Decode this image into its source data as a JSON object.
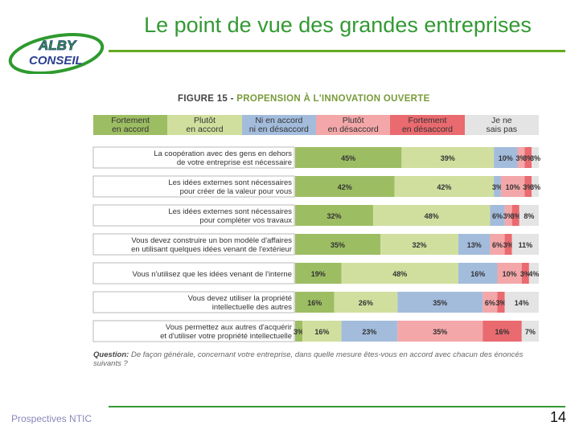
{
  "slide": {
    "title": "Le point de vue des grandes entreprises",
    "logo_top": "ALBY",
    "logo_bottom": "CONSEIL",
    "footer_text": "Prospectives NTIC",
    "page_number": "14"
  },
  "figure": {
    "label": "FIGURE 15 -",
    "title": "PROPENSION À L'INNOVATION OUVERTE",
    "question_label": "Question:",
    "question_text": "De façon générale, concernant votre entreprise, dans quelle mesure êtes-vous en accord avec chacun des énoncés suivants ?"
  },
  "colors": {
    "brand_green": "#339933",
    "series": [
      "#9dbd63",
      "#d0df9e",
      "#a3bcdc",
      "#f3a7a9",
      "#e96a6f",
      "#e4e4e4"
    ]
  },
  "chart_data": {
    "type": "bar",
    "orientation": "horizontal",
    "stacked": true,
    "title": "PROPENSION À L'INNOVATION OUVERTE",
    "legend_position": "top",
    "series": [
      {
        "name": "Fortement en accord",
        "line1": "Fortement",
        "line2": "en accord",
        "values": [
          45,
          42,
          32,
          35,
          19,
          16,
          3
        ]
      },
      {
        "name": "Plutôt en accord",
        "line1": "Plutôt",
        "line2": "en accord",
        "values": [
          39,
          42,
          48,
          32,
          48,
          26,
          16
        ]
      },
      {
        "name": "Ni en accord ni en désaccord",
        "line1": "Ni en accord",
        "line2": "ni en désaccord",
        "values": [
          10,
          3,
          6,
          13,
          16,
          35,
          23
        ]
      },
      {
        "name": "Plutôt en désaccord",
        "line1": "Plutôt",
        "line2": "en désaccord",
        "values": [
          3,
          10,
          3,
          6,
          10,
          6,
          35
        ]
      },
      {
        "name": "Fortement en désaccord",
        "line1": "Fortement",
        "line2": "en désaccord",
        "values": [
          3,
          3,
          3,
          3,
          3,
          3,
          16
        ]
      },
      {
        "name": "Je ne sais pas",
        "line1": "Je ne",
        "line2": "sais pas",
        "values": [
          3,
          3,
          8,
          11,
          4,
          14,
          7
        ]
      }
    ],
    "categories": [
      {
        "line1": "La coopération avec des gens en dehors",
        "line2": "de votre entreprise est nécessaire"
      },
      {
        "line1": "Les idées externes sont nécessaires",
        "line2": "pour créer de la valeur pour vous"
      },
      {
        "line1": "Les idées externes sont nécessaires",
        "line2": "pour compléter vos travaux"
      },
      {
        "line1": "Vous devez construire un bon modèle d'affaires",
        "line2": "en utilisant quelques idées venant de l'extérieur"
      },
      {
        "line1": "Vous n'utilisez que les idées venant de l'interne",
        "line2": ""
      },
      {
        "line1": "Vous devez utiliser la propriété",
        "line2": "intellectuelle des autres"
      },
      {
        "line1": "Vous permettez aux autres d'acquérir",
        "line2": "et d'utiliser votre propriété intellectuelle"
      }
    ],
    "value_labels": [
      [
        "45%",
        "39%",
        "10%",
        "3%",
        "3%",
        "3%"
      ],
      [
        "42%",
        "42%",
        "3%",
        "10%",
        "3%",
        "3%"
      ],
      [
        "32%",
        "48%",
        "6%",
        "3%",
        "3%",
        "8%"
      ],
      [
        "35%",
        "32%",
        "13%",
        "6%",
        "3%",
        "11%"
      ],
      [
        "19%",
        "48%",
        "16%",
        "10%",
        "3%",
        "4%"
      ],
      [
        "16%",
        "26%",
        "35%",
        "6%",
        "3%",
        "14%"
      ],
      [
        "3%",
        "16%",
        "23%",
        "35%",
        "16%",
        "7%"
      ]
    ]
  }
}
